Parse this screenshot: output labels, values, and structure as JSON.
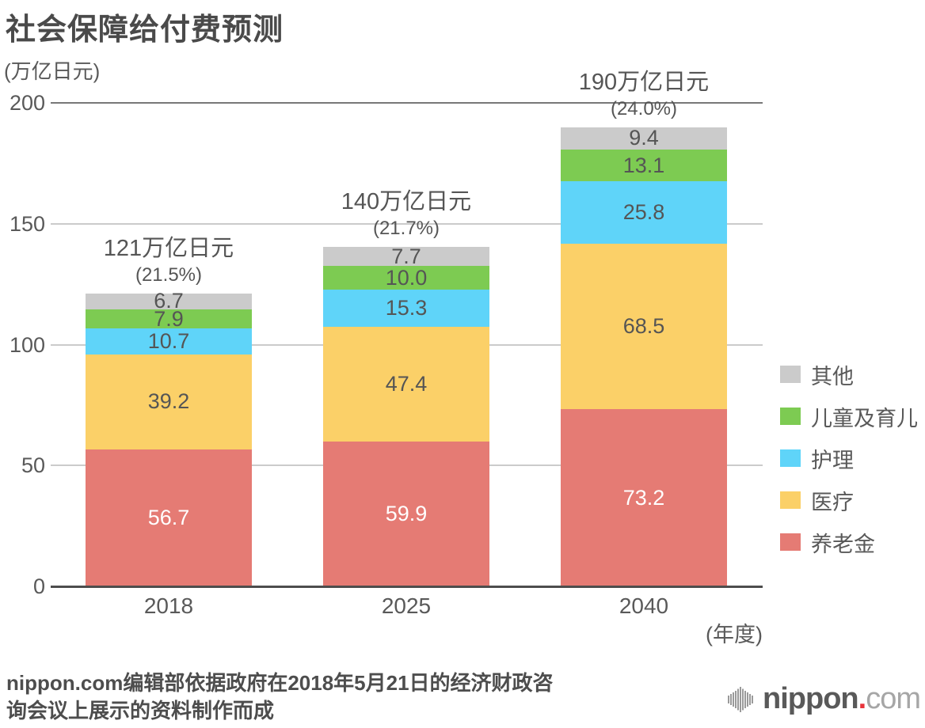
{
  "title": "社会保障给付费预测",
  "chart_data": {
    "type": "bar",
    "stacked": true,
    "title": "社会保障给付费预测",
    "unit_y": "(万亿日元)",
    "unit_x": "(年度)",
    "categories": [
      "2018",
      "2025",
      "2040"
    ],
    "series": [
      {
        "key": "pension",
        "name": "养老金",
        "color": "#e57b74",
        "label_color": "#ffffff",
        "values": [
          56.7,
          59.9,
          73.2
        ],
        "value_labels": [
          "56.7",
          "59.9",
          "73.2"
        ]
      },
      {
        "key": "medical",
        "name": "医疗",
        "color": "#fbd068",
        "label_color": "#555555",
        "values": [
          39.2,
          47.4,
          68.5
        ],
        "value_labels": [
          "39.2",
          "47.4",
          "68.5"
        ]
      },
      {
        "key": "nursing-care",
        "name": "护理",
        "color": "#5fd4f9",
        "label_color": "#555555",
        "values": [
          10.7,
          15.3,
          25.8
        ],
        "value_labels": [
          "10.7",
          "15.3",
          "25.8"
        ]
      },
      {
        "key": "children-childcare",
        "name": "儿童及育儿",
        "color": "#7dcb52",
        "label_color": "#555555",
        "values": [
          7.9,
          10.0,
          13.1
        ],
        "value_labels": [
          "7.9",
          "10.0",
          "13.1"
        ]
      },
      {
        "key": "other",
        "name": "其他",
        "color": "#cbcbcb",
        "label_color": "#555555",
        "values": [
          6.7,
          7.7,
          9.4
        ],
        "value_labels": [
          "6.7",
          "7.7",
          "9.4"
        ]
      }
    ],
    "totals": [
      {
        "label": "121万亿日元",
        "percent": "(21.5%)"
      },
      {
        "label": "140万亿日元",
        "percent": "(21.7%)"
      },
      {
        "label": "190万亿日元",
        "percent": "(24.0%)"
      }
    ],
    "y_ticks": [
      0,
      50,
      100,
      150,
      200
    ],
    "ylim": [
      0,
      200
    ],
    "grid": true,
    "legend_position": "right",
    "legend_order_top_to_bottom": [
      "其他",
      "儿童及育儿",
      "护理",
      "医疗",
      "养老金"
    ]
  },
  "footer": {
    "source_line1": "nippon.com编辑部依据政府在2018年5月21日的经济财政咨",
    "source_line2": "询会议上展示的资料制作而成"
  },
  "logo": {
    "brand": "nippon",
    "dot": ".",
    "tld": "com",
    "brand_red": "#e8333a"
  }
}
